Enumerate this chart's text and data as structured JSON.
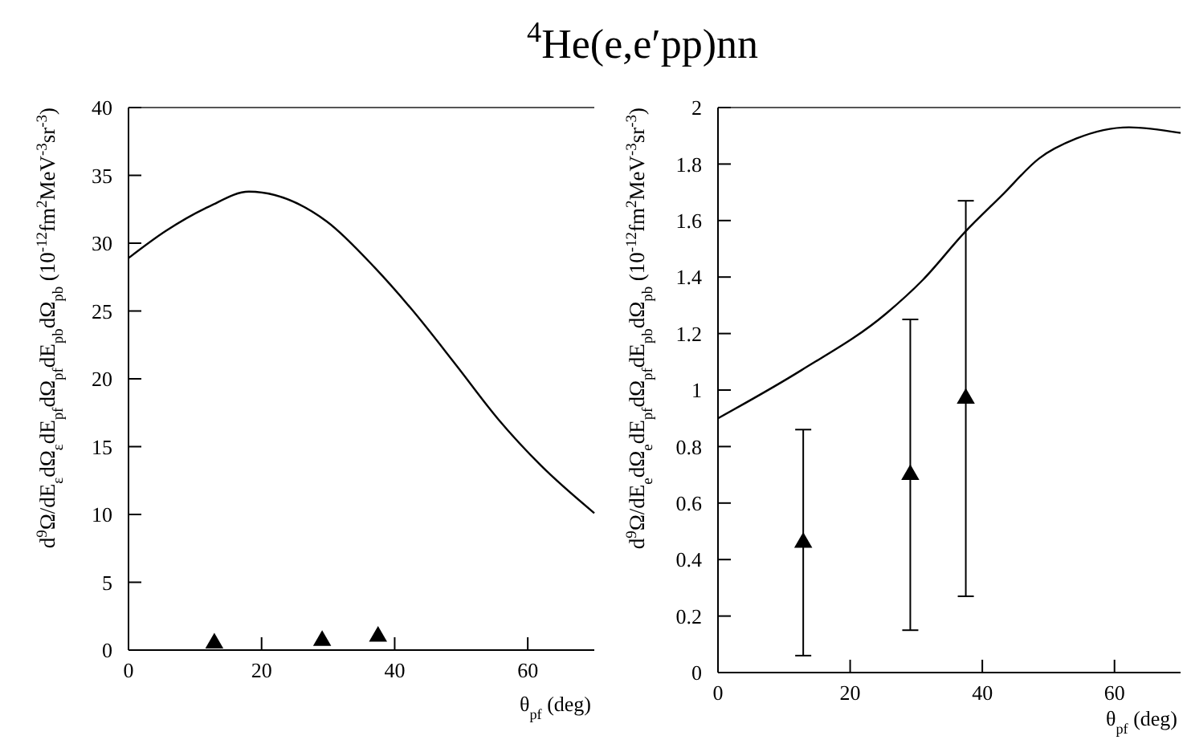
{
  "chart_data": [
    {
      "type": "line",
      "title": "$^{4}$He(e,e′pp)nn",
      "xlabel": "θ$_{pf}$ (deg)",
      "ylabel": "d$^{9}$Ω/dE$_{ε}$dΩ$_{ε}$dE$_{pf}$dΩ$_{pf}$dE$_{pb}$dΩ$_{pb}$ (10$^{-12}$fm$^{2}$MeV$^{-3}$sr$^{-3}$)",
      "xlim": [
        0,
        70
      ],
      "xticks": [
        0,
        20,
        40,
        60
      ],
      "ylim": [
        0,
        40
      ],
      "yticks": [
        0,
        5,
        10,
        15,
        20,
        25,
        30,
        35,
        40
      ],
      "grid": false,
      "series": [
        {
          "color": "#000000",
          "marker": "none",
          "line_style": "solid",
          "x": [
            0,
            5.6,
            12.1,
            18.1,
            29.8,
            37,
            42.6,
            49.1,
            55.6,
            62,
            70
          ],
          "values": [
            28.9,
            30.9,
            32.7,
            33.8,
            31.6,
            28.2,
            25.1,
            21.1,
            17.0,
            13.6,
            10.1
          ]
        },
        {
          "type": "scatter",
          "color": "#000000",
          "marker": "triangle",
          "x": [
            12.9,
            29.1,
            37.5
          ],
          "values": [
            0.5,
            0.7,
            1
          ]
        }
      ]
    },
    {
      "type": "line",
      "xlabel": "θ$_{pf}$ (deg)",
      "ylabel": "d$^{9}$Ω/dE$_{e}$dΩ$_{e}$dE$_{pf}$dΩ$_{pf}$dE$_{pb}$dΩ$_{pb}$ (10$^{-12}$fm$^{2}$MeV$^{-3}$sr$^{-3}$)",
      "xlim": [
        0,
        70
      ],
      "xticks": [
        0,
        20,
        40,
        60
      ],
      "ylim": [
        0,
        2
      ],
      "yticks": [
        0,
        0.2,
        0.4,
        0.6,
        0.8,
        1,
        1.2,
        1.4,
        1.6,
        1.8,
        2
      ],
      "grid": false,
      "series": [
        {
          "color": "#000000",
          "marker": "none",
          "line_style": "solid",
          "x": [
            0,
            12.6,
            25.4,
            31,
            37.4,
            43,
            48.6,
            54.2,
            62.2,
            70
          ],
          "values": [
            0.9,
            1.07,
            1.27,
            1.39,
            1.56,
            1.69,
            1.82,
            1.89,
            1.93,
            1.91
          ]
        },
        {
          "type": "scatter",
          "color": "#000000",
          "marker": "triangle",
          "x": [
            12.9,
            29.1,
            37.5
          ],
          "values": [
            0.46,
            0.7,
            0.97
          ],
          "errors": [
            [
              0.06,
              0.86
            ],
            [
              0.15,
              1.25
            ],
            [
              0.27,
              1.67
            ]
          ]
        }
      ]
    }
  ]
}
